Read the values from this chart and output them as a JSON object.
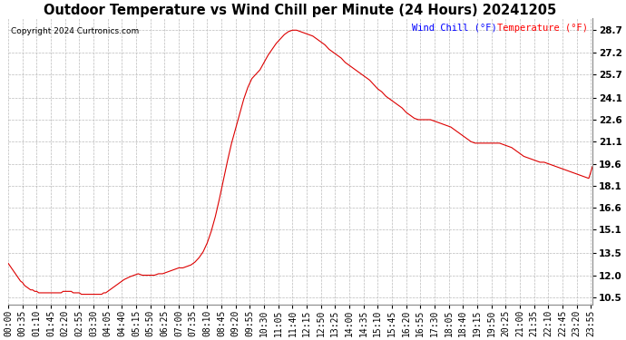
{
  "title": "Outdoor Temperature vs Wind Chill per Minute (24 Hours) 20241205",
  "copyright": "Copyright 2024 Curtronics.com",
  "legend_wind_chill": "Wind Chill (°F)",
  "legend_temperature": "Temperature (°F)",
  "yticks": [
    10.5,
    12.0,
    13.5,
    15.1,
    16.6,
    18.1,
    19.6,
    21.1,
    22.6,
    24.1,
    25.7,
    27.2,
    28.7
  ],
  "ylim": [
    10.0,
    29.5
  ],
  "background_color": "#ffffff",
  "grid_color": "#bbbbbb",
  "line_color": "#dd0000",
  "title_fontsize": 10.5,
  "tick_fontsize": 7.0,
  "xtick_labels": [
    "00:00",
    "00:35",
    "01:10",
    "01:45",
    "02:20",
    "02:55",
    "03:30",
    "04:05",
    "04:40",
    "05:15",
    "05:50",
    "06:25",
    "07:00",
    "07:35",
    "08:10",
    "08:45",
    "09:20",
    "09:55",
    "10:30",
    "11:05",
    "11:40",
    "12:15",
    "12:50",
    "13:25",
    "14:00",
    "14:35",
    "15:10",
    "15:45",
    "16:20",
    "16:55",
    "17:30",
    "18:05",
    "18:40",
    "19:15",
    "19:50",
    "20:25",
    "21:00",
    "21:35",
    "22:10",
    "22:45",
    "23:20",
    "23:55"
  ],
  "curve_minutes": [
    0,
    5,
    10,
    15,
    20,
    25,
    30,
    35,
    40,
    45,
    50,
    55,
    60,
    65,
    70,
    75,
    80,
    85,
    90,
    95,
    100,
    105,
    110,
    115,
    120,
    125,
    130,
    135,
    140,
    145,
    150,
    155,
    160,
    165,
    170,
    175,
    180,
    185,
    190,
    195,
    200,
    205,
    210,
    215,
    220,
    225,
    230,
    235,
    240,
    245,
    250,
    255,
    260,
    265,
    270,
    275,
    280,
    285,
    300,
    310,
    320,
    330,
    340,
    350,
    360,
    370,
    380,
    390,
    400,
    410,
    420,
    430,
    440,
    450,
    460,
    470,
    480,
    490,
    500,
    510,
    520,
    530,
    540,
    550,
    560,
    570,
    580,
    590,
    600,
    610,
    620,
    630,
    640,
    650,
    660,
    670,
    680,
    690,
    700,
    710,
    720,
    730,
    740,
    750,
    760,
    770,
    780,
    790,
    800,
    810,
    820,
    830,
    840,
    850,
    860,
    870,
    880,
    890,
    900,
    910,
    920,
    930,
    940,
    950,
    960,
    970,
    980,
    990,
    1000,
    1010,
    1020,
    1030,
    1040,
    1050,
    1060,
    1070,
    1080,
    1090,
    1100,
    1110,
    1120,
    1130,
    1140,
    1150,
    1160,
    1170,
    1180,
    1190,
    1200,
    1210,
    1220,
    1230,
    1240,
    1250,
    1260,
    1270,
    1280,
    1290,
    1300,
    1310,
    1320,
    1330,
    1340,
    1350,
    1360,
    1370,
    1380,
    1390,
    1400,
    1410,
    1420,
    1430,
    1439
  ],
  "curve_values": [
    12.8,
    12.6,
    12.4,
    12.2,
    12.0,
    11.8,
    11.6,
    11.5,
    11.3,
    11.2,
    11.1,
    11.0,
    11.0,
    10.9,
    10.9,
    10.8,
    10.8,
    10.8,
    10.8,
    10.8,
    10.8,
    10.8,
    10.8,
    10.8,
    10.8,
    10.8,
    10.8,
    10.9,
    10.9,
    10.9,
    10.9,
    10.9,
    10.8,
    10.8,
    10.8,
    10.8,
    10.7,
    10.7,
    10.7,
    10.7,
    10.7,
    10.7,
    10.7,
    10.7,
    10.7,
    10.7,
    10.7,
    10.8,
    10.8,
    10.9,
    11.0,
    11.1,
    11.2,
    11.3,
    11.4,
    11.5,
    11.6,
    11.7,
    11.9,
    12.0,
    12.1,
    12.0,
    12.0,
    12.0,
    12.0,
    12.1,
    12.1,
    12.2,
    12.3,
    12.4,
    12.5,
    12.5,
    12.6,
    12.7,
    12.9,
    13.2,
    13.6,
    14.2,
    15.0,
    16.0,
    17.2,
    18.5,
    19.8,
    21.0,
    22.0,
    23.0,
    24.0,
    24.8,
    25.4,
    25.7,
    26.0,
    26.5,
    27.0,
    27.4,
    27.8,
    28.1,
    28.4,
    28.6,
    28.7,
    28.7,
    28.6,
    28.5,
    28.4,
    28.3,
    28.1,
    27.9,
    27.7,
    27.4,
    27.2,
    27.0,
    26.8,
    26.5,
    26.3,
    26.1,
    25.9,
    25.7,
    25.5,
    25.3,
    25.0,
    24.7,
    24.5,
    24.2,
    24.0,
    23.8,
    23.6,
    23.4,
    23.1,
    22.9,
    22.7,
    22.6,
    22.6,
    22.6,
    22.6,
    22.5,
    22.4,
    22.3,
    22.2,
    22.1,
    21.9,
    21.7,
    21.5,
    21.3,
    21.1,
    21.0,
    21.0,
    21.0,
    21.0,
    21.0,
    21.0,
    21.0,
    20.9,
    20.8,
    20.7,
    20.5,
    20.3,
    20.1,
    20.0,
    19.9,
    19.8,
    19.7,
    19.7,
    19.6,
    19.5,
    19.4,
    19.3,
    19.2,
    19.1,
    19.0,
    18.9,
    18.8,
    18.7,
    18.6,
    19.4
  ]
}
